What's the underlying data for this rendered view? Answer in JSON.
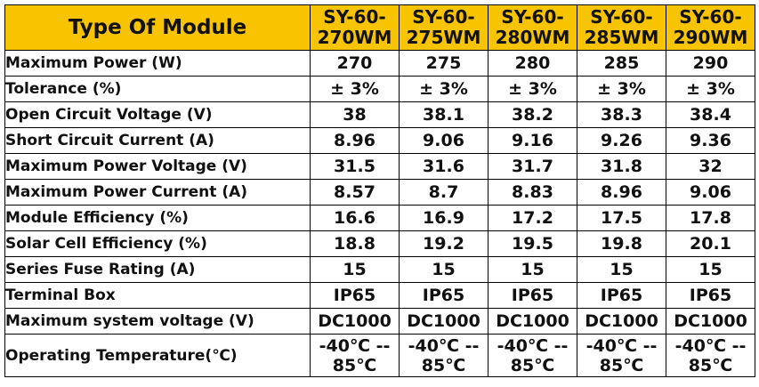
{
  "table": {
    "title": "Type Of Module",
    "models": [
      {
        "line1": "SY-60-",
        "line2": "270WM"
      },
      {
        "line1": "SY-60-",
        "line2": "275WM"
      },
      {
        "line1": "SY-60-",
        "line2": "280WM"
      },
      {
        "line1": "SY-60-",
        "line2": "285WM"
      },
      {
        "line1": "SY-60-",
        "line2": "290WM"
      }
    ],
    "rows": [
      {
        "label": "Maximum Power (W)",
        "values": [
          "270",
          "275",
          "280",
          "285",
          "290"
        ]
      },
      {
        "label": "Tolerance (%)",
        "values": [
          "± 3%",
          "± 3%",
          "± 3%",
          "± 3%",
          "± 3%"
        ]
      },
      {
        "label": "Open Circuit Voltage (V)",
        "values": [
          "38",
          "38.1",
          "38.2",
          "38.3",
          "38.4"
        ]
      },
      {
        "label": "Short Circuit Current (A)",
        "values": [
          "8.96",
          "9.06",
          "9.16",
          "9.26",
          "9.36"
        ]
      },
      {
        "label": "Maximum Power Voltage (V)",
        "values": [
          "31.5",
          "31.6",
          "31.7",
          "31.8",
          "32"
        ]
      },
      {
        "label": "Maximum Power Current (A)",
        "values": [
          "8.57",
          "8.7",
          "8.83",
          "8.96",
          "9.06"
        ]
      },
      {
        "label": "Module Efficiency (%)",
        "values": [
          "16.6",
          "16.9",
          "17.2",
          "17.5",
          "17.8"
        ]
      },
      {
        "label": "Solar Cell Efficiency (%)",
        "values": [
          "18.8",
          "19.2",
          "19.5",
          "19.8",
          "20.1"
        ]
      },
      {
        "label": "Series Fuse Rating (A)",
        "values": [
          "15",
          "15",
          "15",
          "15",
          "15"
        ]
      },
      {
        "label": "Terminal Box",
        "values": [
          "IP65",
          "IP65",
          "IP65",
          "IP65",
          "IP65"
        ]
      },
      {
        "label": "Maximum system voltage (V)",
        "values": [
          "DC1000",
          "DC1000",
          "DC1000",
          "DC1000",
          "DC1000"
        ]
      }
    ],
    "temperature": {
      "label": "Operating Temperature(℃)",
      "values": [
        {
          "line1": "-40℃ --",
          "line2": "85℃"
        },
        {
          "line1": "-40℃ --",
          "line2": "85℃"
        },
        {
          "line1": "-40℃ --",
          "line2": "85℃"
        },
        {
          "line1": "-40℃ --",
          "line2": "85℃"
        },
        {
          "line1": "-40℃ --",
          "line2": "85℃"
        }
      ]
    },
    "colors": {
      "header_bg": "#f8c400",
      "border": "#000000",
      "text": "#111111"
    }
  }
}
